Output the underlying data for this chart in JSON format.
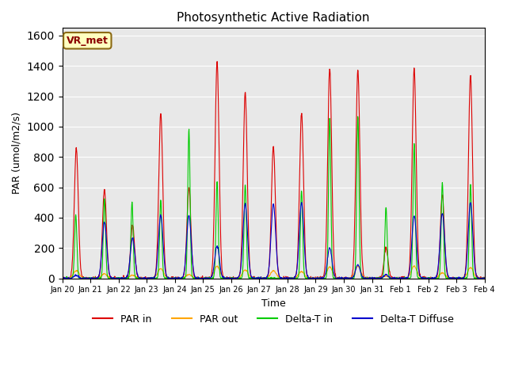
{
  "title": "Photosynthetic Active Radiation",
  "ylabel": "PAR (umol/m2/s)",
  "xlabel": "Time",
  "annotation_text": "VR_met",
  "annotation_facecolor": "#FFFFC0",
  "annotation_edgecolor": "#8B6914",
  "annotation_textcolor": "#8B0000",
  "background_color": "#E8E8E8",
  "ylim": [
    0,
    1650
  ],
  "legend_labels": [
    "PAR in",
    "PAR out",
    "Delta-T in",
    "Delta-T Diffuse"
  ],
  "legend_colors": [
    "#DD0000",
    "#FFA500",
    "#00CC00",
    "#0000CC"
  ],
  "tick_labels": [
    "Jan 20",
    "Jan 21",
    "Jan 22",
    "Jan 23",
    "Jan 24",
    "Jan 25",
    "Jan 26",
    "Jan 27",
    "Jan 28",
    "Jan 29",
    "Jan 30",
    "Jan 31",
    "Feb 1",
    "Feb 2",
    "Feb 3",
    "Feb 4"
  ],
  "days": 15,
  "samples_per_day": 96
}
